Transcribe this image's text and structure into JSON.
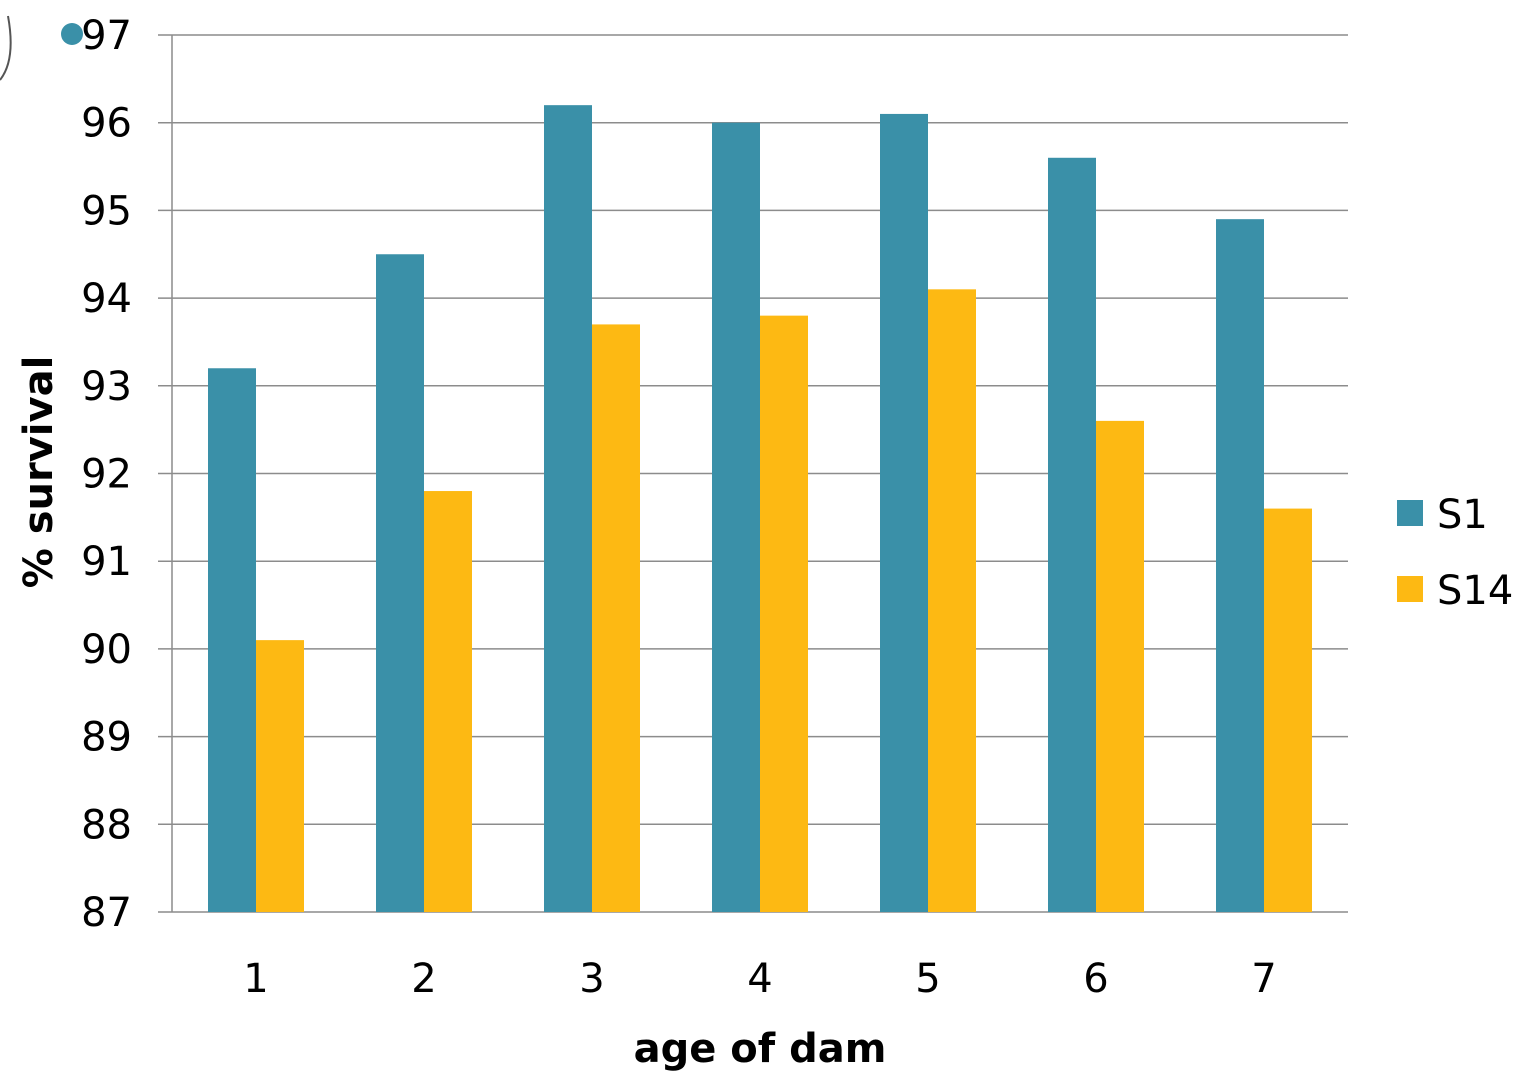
{
  "colors": {
    "s1": "#3a90a8",
    "s14": "#fdb913",
    "grid": "#8c8c8c",
    "axis": "#8c8c8c",
    "marker": "#3a90a8"
  },
  "chart_data": {
    "type": "bar",
    "xlabel": "age of dam",
    "ylabel": "% survival",
    "categories": [
      "1",
      "2",
      "3",
      "4",
      "5",
      "6",
      "7"
    ],
    "series": [
      {
        "name": "S1",
        "values": [
          93.2,
          94.5,
          96.2,
          96.0,
          96.1,
          95.6,
          94.9
        ]
      },
      {
        "name": "S14",
        "values": [
          90.1,
          91.8,
          93.7,
          93.8,
          94.1,
          92.6,
          91.6
        ]
      }
    ],
    "ylim": [
      87,
      97
    ],
    "yticks": [
      "87",
      "88",
      "89",
      "90",
      "91",
      "92",
      "93",
      "94",
      "95",
      "96",
      "97"
    ],
    "grid": true,
    "legend_position": "right"
  }
}
